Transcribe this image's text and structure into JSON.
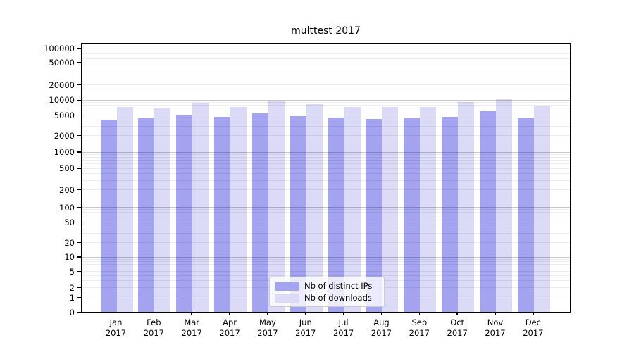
{
  "title": "multtest 2017",
  "chart_data": {
    "type": "bar",
    "title": "multtest 2017",
    "categories": [
      "Jan\n2017",
      "Feb\n2017",
      "Mar\n2017",
      "Apr\n2017",
      "May\n2017",
      "Jun\n2017",
      "Jul\n2017",
      "Aug\n2017",
      "Sep\n2017",
      "Oct\n2017",
      "Nov\n2017",
      "Dec\n2017"
    ],
    "series": [
      {
        "name": "Nb of distinct IPs",
        "color": "#a3a3f0",
        "values": [
          4000,
          4270,
          4800,
          4500,
          5370,
          4650,
          4360,
          4130,
          4270,
          4560,
          5900,
          4300
        ]
      },
      {
        "name": "Nb of downloads",
        "color": "#dbdbf8",
        "values": [
          7100,
          6900,
          8700,
          7280,
          9250,
          8200,
          7100,
          7100,
          7150,
          8950,
          10400,
          7300
        ]
      }
    ],
    "xlabel": "",
    "ylabel": "",
    "yscale": "log (symlog, 0 at baseline)",
    "y_ticks": [
      0,
      1,
      2,
      5,
      10,
      20,
      50,
      100,
      200,
      500,
      1000,
      2000,
      5000,
      10000,
      20000,
      50000,
      100000
    ],
    "ylim": [
      0,
      130000
    ],
    "grid": "horizontal, log minor + major lines",
    "legend_position": "lower center"
  }
}
